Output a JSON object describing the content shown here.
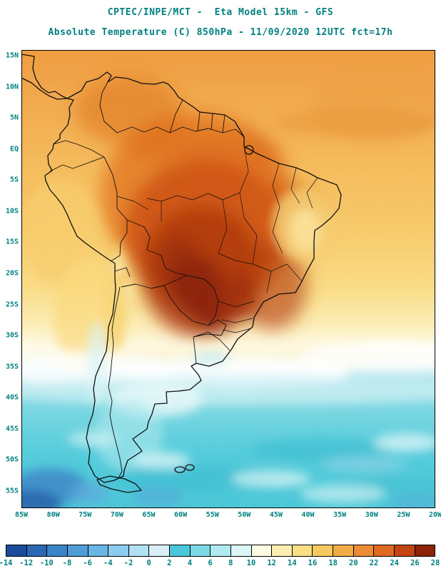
{
  "header": {
    "line1": "CPTEC/INPE/MCT -  Eta Model 15km - GFS",
    "line2": "Absolute Temperature (C) 850hPa - 11/09/2020 12UTC fct=17h"
  },
  "map": {
    "lat_labels": [
      "15N",
      "10N",
      "5N",
      "EQ",
      "5S",
      "10S",
      "15S",
      "20S",
      "25S",
      "30S",
      "35S",
      "40S",
      "45S",
      "50S",
      "55S"
    ],
    "lon_labels": [
      "85W",
      "80W",
      "75W",
      "70W",
      "65W",
      "60W",
      "55W",
      "50W",
      "45W",
      "40W",
      "35W",
      "30W",
      "25W",
      "20W"
    ]
  },
  "colorbar": {
    "ticks": [
      "-14",
      "-12",
      "-10",
      "-8",
      "-6",
      "-4",
      "-2",
      "0",
      "2",
      "4",
      "6",
      "8",
      "10",
      "12",
      "14",
      "16",
      "18",
      "20",
      "22",
      "24",
      "26",
      "28"
    ],
    "cell_colors": [
      "#1A4C9C",
      "#2A68B4",
      "#3B84C8",
      "#4F9ED8",
      "#68B6E4",
      "#8CCCEE",
      "#B2E0F4",
      "#D8EFF8",
      "#49C8DA",
      "#7BDAE5",
      "#AEEAEF",
      "#DCF6F6",
      "#FEFBE3",
      "#FCEEB0",
      "#FADF85",
      "#F7C95F",
      "#F2AC46",
      "#EC8C34",
      "#E06A22",
      "#C24513",
      "#8B2408"
    ]
  },
  "colors": {
    "text": "#008080",
    "frame": "#000000"
  },
  "chart_data": {
    "type": "heatmap",
    "title": "Absolute Temperature (C) 850hPa",
    "model_line": "CPTEC/INPE/MCT -  Eta Model 15km - GFS",
    "valid_time": "11/09/2020 12UTC fct=17h",
    "units": "C",
    "y_ticks": [
      "15N",
      "10N",
      "5N",
      "EQ",
      "5S",
      "10S",
      "15S",
      "20S",
      "25S",
      "30S",
      "35S",
      "40S",
      "45S",
      "50S",
      "55S"
    ],
    "x_ticks": [
      "85W",
      "80W",
      "75W",
      "70W",
      "65W",
      "60W",
      "55W",
      "50W",
      "45W",
      "40W",
      "35W",
      "30W",
      "25W",
      "20W"
    ],
    "scale_ticks": [
      -14,
      -12,
      -10,
      -8,
      -6,
      -4,
      -2,
      0,
      2,
      4,
      6,
      8,
      10,
      12,
      14,
      16,
      18,
      20,
      22,
      24,
      26,
      28
    ],
    "legend_position": "bottom",
    "grid": false
  }
}
